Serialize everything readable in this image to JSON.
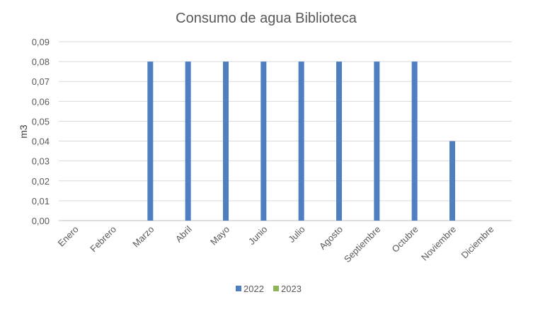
{
  "chart_data": {
    "type": "bar",
    "title": "Consumo de agua Biblioteca",
    "xlabel": "",
    "ylabel": "m3",
    "categories": [
      "Enero",
      "Febrero",
      "Marzo",
      "Abril",
      "Mayo",
      "Junio",
      "Julio",
      "Agosto",
      "Septiembre",
      "Octubre",
      "Noviembre",
      "Diciembre"
    ],
    "series": [
      {
        "name": "2022",
        "color": "#4F7FC1",
        "values": [
          0,
          0,
          0.08,
          0.08,
          0.08,
          0.08,
          0.08,
          0.08,
          0.08,
          0.08,
          0.04,
          0
        ]
      },
      {
        "name": "2023",
        "color": "#8DB457",
        "values": [
          0,
          0,
          0,
          0,
          0,
          0,
          0,
          0,
          0,
          0,
          0,
          0
        ]
      }
    ],
    "ylim": [
      0,
      0.09
    ],
    "yticks": [
      "0,00",
      "0,01",
      "0,02",
      "0,03",
      "0,04",
      "0,05",
      "0,06",
      "0,07",
      "0,08",
      "0,09"
    ],
    "grid": true,
    "legend_position": "bottom"
  }
}
